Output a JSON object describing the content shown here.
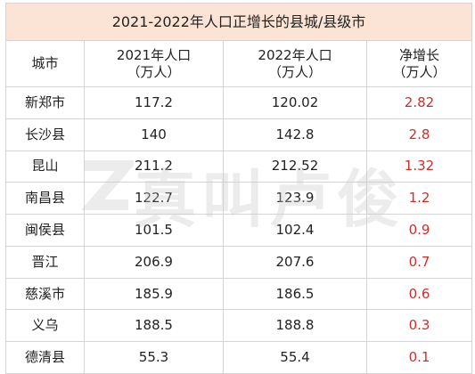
{
  "table": {
    "title": "2021-2022年人口正增长的县城/县级市",
    "header": [
      [
        "城市"
      ],
      [
        "2021年人口",
        "（万人）"
      ],
      [
        "2022年人口",
        "（万人）"
      ],
      [
        "净增长",
        "（万人）"
      ]
    ],
    "rows": [
      [
        "新郑市",
        "117.2",
        "120.02",
        "2.82"
      ],
      [
        "长沙县",
        "140",
        "142.8",
        "2.8"
      ],
      [
        "昆山",
        "211.2",
        "212.52",
        "1.32"
      ],
      [
        "南昌县",
        "122.7",
        "123.9",
        "1.2"
      ],
      [
        "闽侯县",
        "101.5",
        "102.4",
        "0.9"
      ],
      [
        "晋江",
        "206.9",
        "207.6",
        "0.7"
      ],
      [
        "慈溪市",
        "185.9",
        "186.5",
        "0.6"
      ],
      [
        "义乌",
        "188.5",
        "188.8",
        "0.3"
      ],
      [
        "德清县",
        "55.3",
        "55.4",
        "0.1"
      ]
    ]
  },
  "watermark": "真叫卢俊"
}
